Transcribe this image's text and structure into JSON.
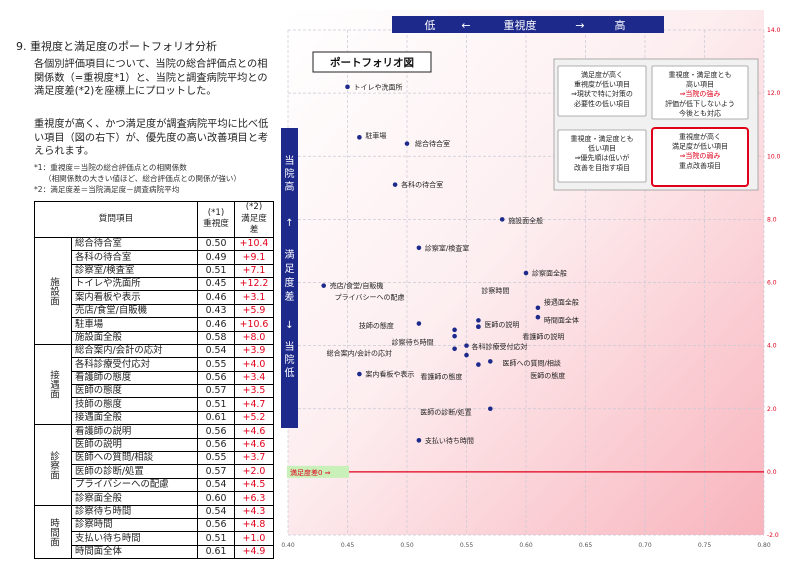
{
  "section": {
    "title": "9. 重視度と満足度のポートフォリオ分析",
    "para1": "各個別評価項目について、当院の総合評価点との相関係数（=重視度*1）と、当院と調査病院平均との満足度差(*2)を座標上にプロットした。",
    "para2": "重視度が高く、かつ満足度が調査病院平均に比べ低い項目（図の右下）が、優先度の高い改善項目と考えられます。",
    "notes": [
      "*1：重視度＝当院の総合評価点との相関係数",
      "（相関係数の大きい値ほど、総合評価点との関係が強い）",
      "*2：満足度差＝当院満足度－調査病院平均"
    ]
  },
  "table": {
    "headers": {
      "item": "質問項目",
      "importance": "(*1)\n重視度",
      "diff": "(*2)\n満足度差"
    },
    "groups": [
      {
        "name": "施設面",
        "rows": [
          {
            "item": "総合待合室",
            "importance": "0.50",
            "diff": "+10.4"
          },
          {
            "item": "各科の待合室",
            "importance": "0.49",
            "diff": "+9.1"
          },
          {
            "item": "診察室/検査室",
            "importance": "0.51",
            "diff": "+7.1"
          },
          {
            "item": "トイレや洗面所",
            "importance": "0.45",
            "diff": "+12.2"
          },
          {
            "item": "案内看板や表示",
            "importance": "0.46",
            "diff": "+3.1"
          },
          {
            "item": "売店/食堂/自販機",
            "importance": "0.43",
            "diff": "+5.9"
          },
          {
            "item": "駐車場",
            "importance": "0.46",
            "diff": "+10.6"
          },
          {
            "item": "施設面全般",
            "importance": "0.58",
            "diff": "+8.0"
          }
        ]
      },
      {
        "name": "接遇面",
        "rows": [
          {
            "item": "総合案内/会計の応対",
            "importance": "0.54",
            "diff": "+3.9"
          },
          {
            "item": "各科診療受付応対",
            "importance": "0.55",
            "diff": "+4.0"
          },
          {
            "item": "看護師の態度",
            "importance": "0.56",
            "diff": "+3.4"
          },
          {
            "item": "医師の態度",
            "importance": "0.57",
            "diff": "+3.5"
          },
          {
            "item": "技師の態度",
            "importance": "0.51",
            "diff": "+4.7"
          },
          {
            "item": "接遇面全般",
            "importance": "0.61",
            "diff": "+5.2"
          }
        ]
      },
      {
        "name": "診察面",
        "rows": [
          {
            "item": "看護師の説明",
            "importance": "0.56",
            "diff": "+4.6"
          },
          {
            "item": "医師の説明",
            "importance": "0.56",
            "diff": "+4.6"
          },
          {
            "item": "医師への質問/相談",
            "importance": "0.55",
            "diff": "+3.7"
          },
          {
            "item": "医師の診断/処置",
            "importance": "0.57",
            "diff": "+2.0"
          },
          {
            "item": "プライバシーへの配慮",
            "importance": "0.54",
            "diff": "+4.5"
          },
          {
            "item": "診察面全般",
            "importance": "0.60",
            "diff": "+6.3"
          }
        ]
      },
      {
        "name": "時間面",
        "rows": [
          {
            "item": "診察待ち時間",
            "importance": "0.54",
            "diff": "+4.3"
          },
          {
            "item": "診察時間",
            "importance": "0.56",
            "diff": "+4.8"
          },
          {
            "item": "支払い待ち時間",
            "importance": "0.51",
            "diff": "+1.0"
          },
          {
            "item": "時間面全体",
            "importance": "0.61",
            "diff": "+4.9"
          }
        ]
      }
    ]
  },
  "chart": {
    "label": "ポートフォリオ図",
    "top_axis": {
      "low": "低",
      "arrow_left": "←",
      "title": "重視度",
      "arrow_right": "→",
      "high": "高"
    },
    "left_axis": {
      "high": "当院 高",
      "up": "↑",
      "title": "満足度差",
      "down": "↓",
      "low": "当院 低"
    },
    "zero_label": "満足度差0 ⇒",
    "quadrants": [
      {
        "lines": [
          "満足度が高く",
          "重視度が低い項目",
          "⇒現状で特に対策の",
          "必要性の低い項目"
        ]
      },
      {
        "lines": [
          "重視度・満足度とも",
          "高い項目",
          "⇒当院の強み",
          "評価が低下しないよう",
          "今後とも対応"
        ],
        "red_line": 2
      },
      {
        "lines": [
          "重視度・満足度とも",
          "低い項目",
          "⇒優先順は低いが",
          "改善を目指す項目"
        ]
      },
      {
        "lines": [
          "重視度が高く",
          "満足度が低い項目",
          "⇒当院の弱み",
          "重点改善項目"
        ],
        "red_line": 2
      }
    ],
    "colors": {
      "accent_red": "#e0001a",
      "navy": "#1d2a8c",
      "point": "#1d2a8c",
      "zero_line": "#e0001a",
      "label_bg": "#c9f0b8"
    }
  },
  "chart_data": {
    "type": "scatter",
    "xlim": [
      0.4,
      0.8
    ],
    "ylim": [
      -2.0,
      14.0
    ],
    "xticks": [
      "0.40",
      "0.45",
      "0.50",
      "0.55",
      "0.60",
      "0.65",
      "0.70",
      "0.75",
      "0.80"
    ],
    "yticks": [
      "-2.0",
      "0.0",
      "2.0",
      "4.0",
      "6.0",
      "8.0",
      "10.0",
      "12.0",
      "14.0"
    ],
    "grid": true,
    "points": [
      {
        "label": "トイレや洗面所",
        "x": 0.45,
        "y": 12.2
      },
      {
        "label": "駐車場",
        "x": 0.46,
        "y": 10.6
      },
      {
        "label": "総合待合室",
        "x": 0.5,
        "y": 10.4
      },
      {
        "label": "各科の待合室",
        "x": 0.49,
        "y": 9.1
      },
      {
        "label": "施設面全般",
        "x": 0.58,
        "y": 8.0
      },
      {
        "label": "診察室/検査室",
        "x": 0.51,
        "y": 7.1
      },
      {
        "label": "診察面全般",
        "x": 0.6,
        "y": 6.3
      },
      {
        "label": "売店/食堂/自販機",
        "x": 0.43,
        "y": 5.9
      },
      {
        "label": "プライバシーへの配慮",
        "x": 0.54,
        "y": 4.5
      },
      {
        "label": "診察時間",
        "x": 0.56,
        "y": 4.8
      },
      {
        "label": "接遇面全般",
        "x": 0.61,
        "y": 5.2
      },
      {
        "label": "時間面全体",
        "x": 0.61,
        "y": 4.9
      },
      {
        "label": "技師の態度",
        "x": 0.51,
        "y": 4.7
      },
      {
        "label": "医師の説明",
        "x": 0.56,
        "y": 4.6
      },
      {
        "label": "看護師の説明",
        "x": 0.56,
        "y": 4.6
      },
      {
        "label": "診察待ち時間",
        "x": 0.54,
        "y": 4.3
      },
      {
        "label": "各科診療受付応対",
        "x": 0.55,
        "y": 4.0
      },
      {
        "label": "総合案内/会計の応対",
        "x": 0.54,
        "y": 3.9
      },
      {
        "label": "医師への質問/相談",
        "x": 0.55,
        "y": 3.7
      },
      {
        "label": "看護師の態度",
        "x": 0.56,
        "y": 3.4
      },
      {
        "label": "医師の態度",
        "x": 0.57,
        "y": 3.5
      },
      {
        "label": "案内看板や表示",
        "x": 0.46,
        "y": 3.1
      },
      {
        "label": "医師の診断/処置",
        "x": 0.57,
        "y": 2.0
      },
      {
        "label": "支払い待ち時間",
        "x": 0.51,
        "y": 1.0
      }
    ]
  }
}
